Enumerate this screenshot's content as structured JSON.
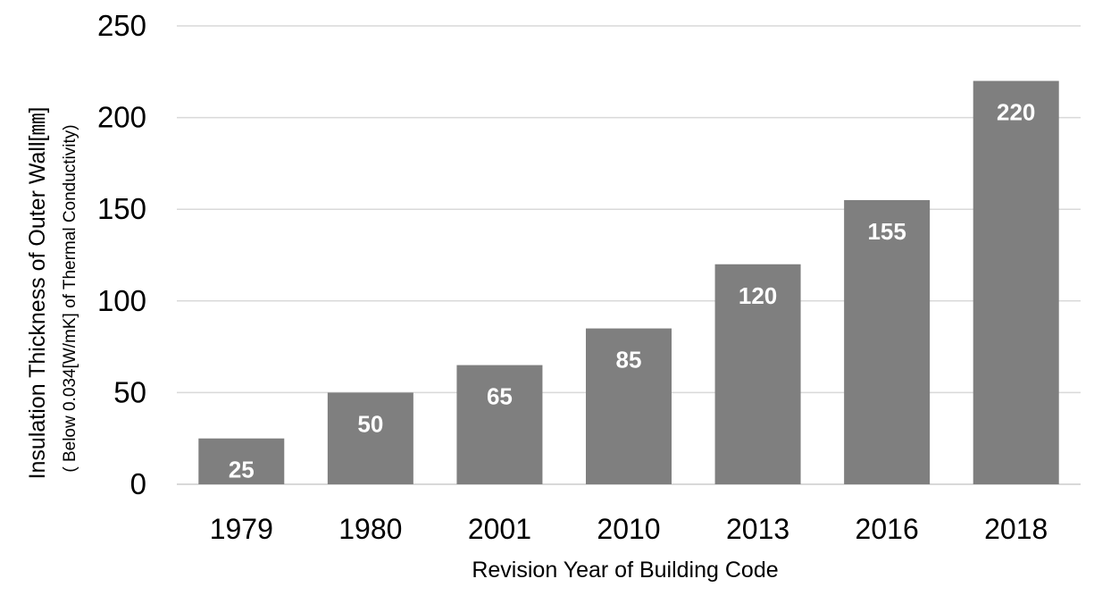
{
  "chart_data": {
    "type": "bar",
    "categories": [
      "1979",
      "1980",
      "2001",
      "2010",
      "2013",
      "2016",
      "2018"
    ],
    "values": [
      25,
      50,
      65,
      85,
      120,
      155,
      220
    ],
    "data_labels": [
      "25",
      "50",
      "65",
      "85",
      "120",
      "155",
      "220"
    ],
    "title": "",
    "xlabel": "Revision Year of Building Code",
    "ylabel": "Insulation Thickness of Outer Wall[㎜]",
    "ylabel_sub": "( Below 0.034[W/mK] of Thermal Conductivity)",
    "ylim": [
      0,
      250
    ],
    "yticks": [
      0,
      50,
      100,
      150,
      200,
      250
    ],
    "ytick_labels": [
      "0",
      "50",
      "100",
      "150",
      "200",
      "250"
    ],
    "grid": true,
    "legend": "none",
    "colors": {
      "bar": "#7f7f7f",
      "grid": "#d9d9d9",
      "label": "#ffffff",
      "text": "#000000"
    }
  }
}
